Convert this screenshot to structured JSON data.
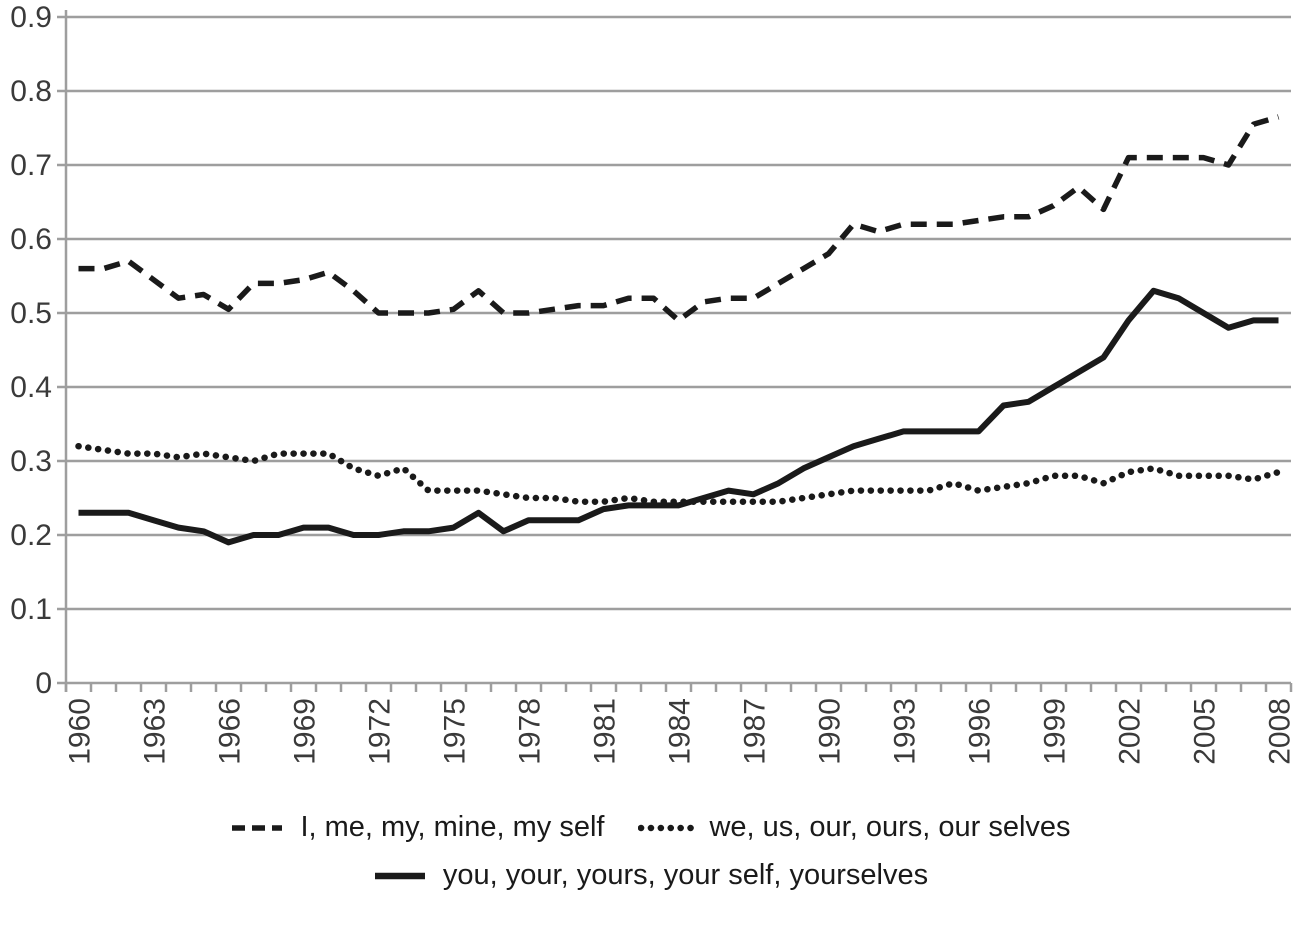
{
  "chart_data": {
    "type": "line",
    "title": "",
    "xlabel": "",
    "ylabel": "",
    "x": [
      1960,
      1961,
      1962,
      1963,
      1964,
      1965,
      1966,
      1967,
      1968,
      1969,
      1970,
      1971,
      1972,
      1973,
      1974,
      1975,
      1976,
      1977,
      1978,
      1979,
      1980,
      1981,
      1982,
      1983,
      1984,
      1985,
      1986,
      1987,
      1988,
      1989,
      1990,
      1991,
      1992,
      1993,
      1994,
      1995,
      1996,
      1997,
      1998,
      1999,
      2000,
      2001,
      2002,
      2003,
      2004,
      2005,
      2006,
      2007,
      2008
    ],
    "series": [
      {
        "name": "I, me, my, mine, my self",
        "style": "dashed",
        "values": [
          0.56,
          0.56,
          0.57,
          0.545,
          0.52,
          0.525,
          0.505,
          0.54,
          0.54,
          0.545,
          0.555,
          0.53,
          0.5,
          0.5,
          0.5,
          0.505,
          0.53,
          0.5,
          0.5,
          0.505,
          0.51,
          0.51,
          0.52,
          0.52,
          0.49,
          0.515,
          0.52,
          0.52,
          0.54,
          0.56,
          0.58,
          0.62,
          0.61,
          0.62,
          0.62,
          0.62,
          0.625,
          0.63,
          0.63,
          0.645,
          0.67,
          0.64,
          0.71,
          0.71,
          0.71,
          0.71,
          0.7,
          0.755,
          0.765
        ]
      },
      {
        "name": "we, us, our, ours, our selves",
        "style": "dotted",
        "values": [
          0.32,
          0.315,
          0.31,
          0.31,
          0.305,
          0.31,
          0.305,
          0.3,
          0.31,
          0.31,
          0.31,
          0.29,
          0.28,
          0.29,
          0.26,
          0.26,
          0.26,
          0.255,
          0.25,
          0.25,
          0.245,
          0.245,
          0.25,
          0.245,
          0.245,
          0.245,
          0.245,
          0.245,
          0.245,
          0.25,
          0.255,
          0.26,
          0.26,
          0.26,
          0.26,
          0.27,
          0.26,
          0.265,
          0.27,
          0.28,
          0.28,
          0.27,
          0.285,
          0.29,
          0.28,
          0.28,
          0.28,
          0.275,
          0.285
        ]
      },
      {
        "name": "you, your, yours, your self, yourselves",
        "style": "solid",
        "values": [
          0.23,
          0.23,
          0.23,
          0.22,
          0.21,
          0.205,
          0.19,
          0.2,
          0.2,
          0.21,
          0.21,
          0.2,
          0.2,
          0.205,
          0.205,
          0.21,
          0.23,
          0.205,
          0.22,
          0.22,
          0.22,
          0.235,
          0.24,
          0.24,
          0.24,
          0.25,
          0.26,
          0.255,
          0.27,
          0.29,
          0.305,
          0.32,
          0.33,
          0.34,
          0.34,
          0.34,
          0.34,
          0.375,
          0.38,
          0.4,
          0.42,
          0.44,
          0.49,
          0.53,
          0.52,
          0.5,
          0.48,
          0.49,
          0.49
        ]
      }
    ],
    "ylim": [
      0,
      0.9
    ],
    "ytick_labels": [
      "0",
      "0.1",
      "0.2",
      "0.3",
      "0.4",
      "0.5",
      "0.6",
      "0.7",
      "0.8",
      "0.9"
    ],
    "xtick_labels": [
      "1960",
      "1963",
      "1966",
      "1969",
      "1972",
      "1975",
      "1978",
      "1981",
      "1984",
      "1987",
      "1990",
      "1993",
      "1996",
      "1999",
      "2002",
      "2005",
      "2008"
    ],
    "grid": "horizontal",
    "legend_position": "bottom",
    "legend_rows": [
      [
        0,
        1
      ],
      [
        2
      ]
    ],
    "colors": {
      "line": "#1a1a1a",
      "grid": "#9e9e9e",
      "axis": "#9e9e9e",
      "text": "#3a3a3a"
    }
  }
}
